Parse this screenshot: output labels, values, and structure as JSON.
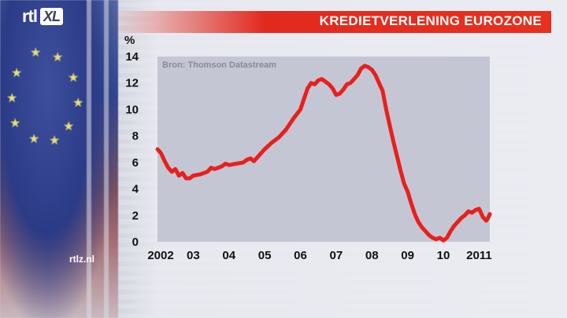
{
  "header": {
    "brand": "rtl",
    "brand_badge": "XL",
    "title": "KREDIETVERLENING EUROZONE",
    "url": "rtlz.nl"
  },
  "chart_data": {
    "type": "line",
    "title": "KREDIETVERLENING EUROZONE",
    "ylabel": "%",
    "source": "Bron: Thomson Datastream",
    "xlim": [
      2002.0,
      2011.3
    ],
    "ylim": [
      0,
      14
    ],
    "yticks": [
      0,
      2,
      4,
      6,
      8,
      10,
      12,
      14
    ],
    "xticks": [
      {
        "value": 2002.0,
        "label": "2002"
      },
      {
        "value": 2003.0,
        "label": "03"
      },
      {
        "value": 2004.0,
        "label": "04"
      },
      {
        "value": 2005.0,
        "label": "05"
      },
      {
        "value": 2006.0,
        "label": "06"
      },
      {
        "value": 2007.0,
        "label": "07"
      },
      {
        "value": 2008.0,
        "label": "08"
      },
      {
        "value": 2009.0,
        "label": "09"
      },
      {
        "value": 2010.0,
        "label": "10"
      },
      {
        "value": 2011.0,
        "label": "2011"
      }
    ],
    "line_color": "#e8201c",
    "grid": false,
    "series": [
      {
        "values": [
          [
            2002.0,
            7.0
          ],
          [
            2002.1,
            6.7
          ],
          [
            2002.2,
            6.1
          ],
          [
            2002.3,
            5.6
          ],
          [
            2002.4,
            5.3
          ],
          [
            2002.5,
            5.5
          ],
          [
            2002.6,
            5.0
          ],
          [
            2002.7,
            5.2
          ],
          [
            2002.8,
            4.8
          ],
          [
            2002.9,
            4.8
          ],
          [
            2003.0,
            5.0
          ],
          [
            2003.2,
            5.1
          ],
          [
            2003.4,
            5.3
          ],
          [
            2003.5,
            5.6
          ],
          [
            2003.6,
            5.5
          ],
          [
            2003.8,
            5.7
          ],
          [
            2003.9,
            5.9
          ],
          [
            2004.0,
            5.8
          ],
          [
            2004.2,
            5.9
          ],
          [
            2004.4,
            6.0
          ],
          [
            2004.5,
            6.2
          ],
          [
            2004.6,
            6.3
          ],
          [
            2004.7,
            6.1
          ],
          [
            2004.8,
            6.4
          ],
          [
            2005.0,
            7.0
          ],
          [
            2005.2,
            7.5
          ],
          [
            2005.4,
            7.9
          ],
          [
            2005.6,
            8.5
          ],
          [
            2005.8,
            9.3
          ],
          [
            2006.0,
            10.0
          ],
          [
            2006.1,
            10.8
          ],
          [
            2006.2,
            11.6
          ],
          [
            2006.3,
            12.0
          ],
          [
            2006.4,
            11.9
          ],
          [
            2006.5,
            12.2
          ],
          [
            2006.6,
            12.3
          ],
          [
            2006.7,
            12.1
          ],
          [
            2006.8,
            11.9
          ],
          [
            2006.9,
            11.6
          ],
          [
            2007.0,
            11.1
          ],
          [
            2007.1,
            11.2
          ],
          [
            2007.2,
            11.5
          ],
          [
            2007.3,
            11.9
          ],
          [
            2007.4,
            12.0
          ],
          [
            2007.5,
            12.3
          ],
          [
            2007.6,
            12.6
          ],
          [
            2007.7,
            13.1
          ],
          [
            2007.8,
            13.3
          ],
          [
            2007.9,
            13.2
          ],
          [
            2008.0,
            13.0
          ],
          [
            2008.1,
            12.6
          ],
          [
            2008.2,
            12.0
          ],
          [
            2008.3,
            11.4
          ],
          [
            2008.4,
            10.0
          ],
          [
            2008.5,
            8.8
          ],
          [
            2008.6,
            7.6
          ],
          [
            2008.7,
            6.5
          ],
          [
            2008.8,
            5.4
          ],
          [
            2008.9,
            4.4
          ],
          [
            2009.0,
            3.8
          ],
          [
            2009.1,
            2.9
          ],
          [
            2009.2,
            2.1
          ],
          [
            2009.3,
            1.5
          ],
          [
            2009.4,
            1.1
          ],
          [
            2009.5,
            0.8
          ],
          [
            2009.6,
            0.5
          ],
          [
            2009.7,
            0.3
          ],
          [
            2009.8,
            0.2
          ],
          [
            2009.9,
            0.3
          ],
          [
            2010.0,
            0.1
          ],
          [
            2010.1,
            0.3
          ],
          [
            2010.2,
            0.8
          ],
          [
            2010.3,
            1.2
          ],
          [
            2010.4,
            1.5
          ],
          [
            2010.5,
            1.8
          ],
          [
            2010.6,
            2.0
          ],
          [
            2010.7,
            2.3
          ],
          [
            2010.8,
            2.2
          ],
          [
            2010.9,
            2.4
          ],
          [
            2011.0,
            2.5
          ],
          [
            2011.05,
            2.2
          ],
          [
            2011.1,
            1.9
          ],
          [
            2011.2,
            1.6
          ],
          [
            2011.25,
            1.8
          ],
          [
            2011.3,
            2.1
          ]
        ]
      }
    ]
  }
}
